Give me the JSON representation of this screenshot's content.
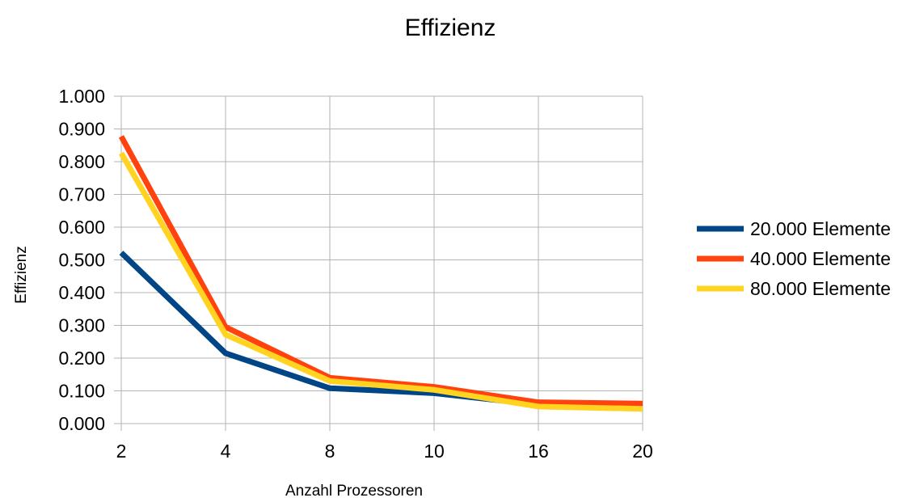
{
  "chart_data": {
    "type": "line",
    "title": "Effizienz",
    "xlabel": "Anzahl Prozessoren",
    "ylabel": "Effizienz",
    "categories": [
      "2",
      "4",
      "8",
      "10",
      "16",
      "20"
    ],
    "ylim": [
      0,
      1.0
    ],
    "y_ticks": [
      "0.000",
      "0.100",
      "0.200",
      "0.300",
      "0.400",
      "0.500",
      "0.600",
      "0.700",
      "0.800",
      "0.900",
      "1.000"
    ],
    "grid": true,
    "legend_position": "right",
    "series": [
      {
        "name": "20.000 Elemente",
        "color": "#004586",
        "values": [
          0.522,
          0.215,
          0.108,
          0.093,
          0.058,
          0.05
        ]
      },
      {
        "name": "40.000 Elemente",
        "color": "#ff420e",
        "values": [
          0.877,
          0.295,
          0.14,
          0.112,
          0.065,
          0.061
        ]
      },
      {
        "name": "80.000 Elemente",
        "color": "#ffd320",
        "values": [
          0.826,
          0.272,
          0.13,
          0.103,
          0.052,
          0.045
        ]
      }
    ]
  }
}
